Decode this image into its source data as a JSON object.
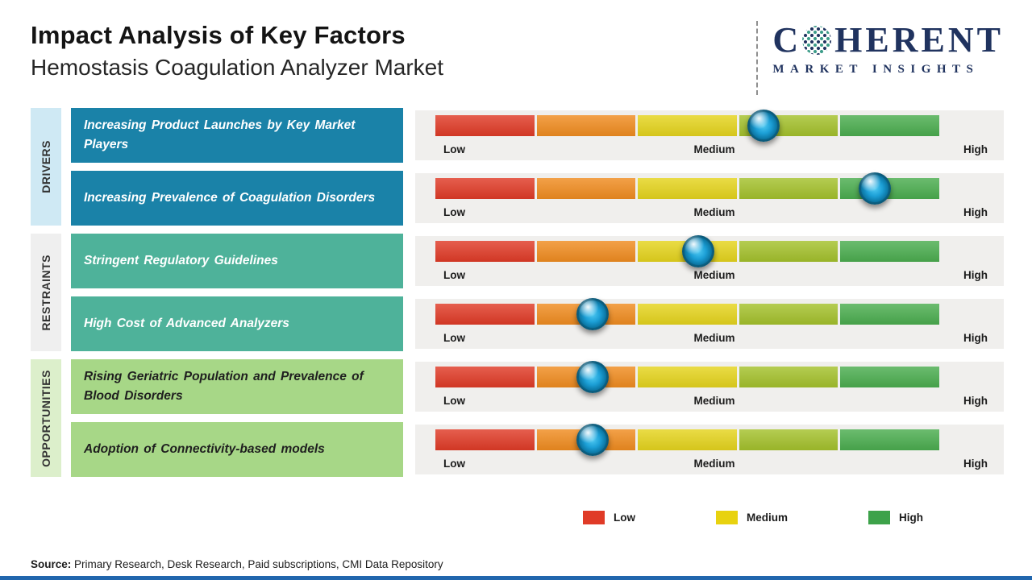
{
  "header": {
    "title": "Impact Analysis of Key Factors",
    "subtitle": "Hemostasis Coagulation Analyzer Market"
  },
  "logo": {
    "brand": "COHERENT",
    "tagline": "MARKET INSIGHTS",
    "color": "#20335f"
  },
  "chart_data": {
    "type": "impact-rating-scale",
    "title": "Impact Analysis of Key Factors",
    "subtitle": "Hemostasis Coagulation Analyzer Market",
    "scale_labels": [
      "Low",
      "Medium",
      "High"
    ],
    "segment_colors": [
      "#e03b27",
      "#f08c20",
      "#e5d41d",
      "#a4c12c",
      "#4bad4f"
    ],
    "bar_background": "#f0efed",
    "groups": [
      {
        "name": "DRIVERS",
        "strip_color": "#cfe9f4",
        "box_color": "#1a82a8",
        "text_color": "#ffffff",
        "factors": [
          {
            "label": "Increasing Product Launches by Key Market Players",
            "impact_pct": 65,
            "impact_level": "Medium-High"
          },
          {
            "label": "Increasing Prevalence of Coagulation Disorders",
            "impact_pct": 87,
            "impact_level": "High"
          }
        ]
      },
      {
        "name": "RESTRAINTS",
        "strip_color": "#efefef",
        "box_color": "#4eb29a",
        "text_color": "#ffffff",
        "factors": [
          {
            "label": "Stringent Regulatory Guidelines",
            "impact_pct": 52,
            "impact_level": "Medium"
          },
          {
            "label": "High Cost of Advanced Analyzers",
            "impact_pct": 31,
            "impact_level": "Low-Medium"
          }
        ]
      },
      {
        "name": "OPPORTUNITIES",
        "strip_color": "#dcefcb",
        "box_color": "#a7d787",
        "text_color": "#1f1f1f",
        "factors": [
          {
            "label": "Rising Geriatric Population and Prevalence of Blood Disorders",
            "impact_pct": 31,
            "impact_level": "Low-Medium"
          },
          {
            "label": "Adoption of Connectivity-based models",
            "impact_pct": 31,
            "impact_level": "Low-Medium"
          }
        ]
      }
    ],
    "legend": [
      {
        "label": "Low",
        "color": "#e03b27"
      },
      {
        "label": "Medium",
        "color": "#e8d20f"
      },
      {
        "label": "High",
        "color": "#3da24a"
      }
    ]
  },
  "footer": {
    "source_label": "Source:",
    "source_text": " Primary Research, Desk Research, Paid subscriptions, CMI Data Repository",
    "bottom_bar_color": "#2166ad"
  }
}
